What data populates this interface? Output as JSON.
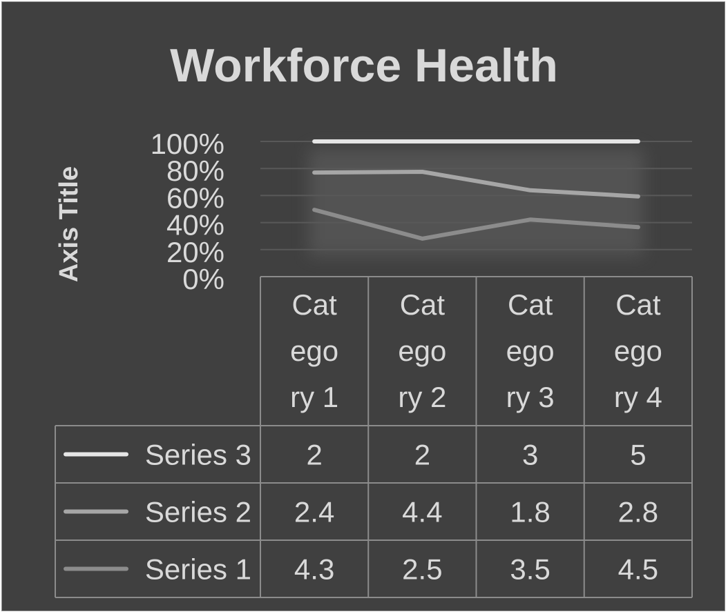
{
  "colors": {
    "background": "#404040",
    "text": "#d9d9d9",
    "grid": "#595959",
    "table_border": "#8c8c8c",
    "series_3": "#e6e6e6",
    "series_2": "#a6a6a6",
    "series_1": "#8c8c8c"
  },
  "chart_data": {
    "type": "line",
    "title": "Workforce Health",
    "ylabel": "Axis Title",
    "percent_stacked": true,
    "ylim": [
      0,
      1
    ],
    "y_ticks": [
      "0%",
      "20%",
      "40%",
      "60%",
      "80%",
      "100%"
    ],
    "grid": true,
    "legend": "data-table",
    "categories": [
      "Category 1",
      "Category 2",
      "Category 3",
      "Category 4"
    ],
    "category_label_lines": [
      [
        "Cat",
        "ego",
        "ry 1"
      ],
      [
        "Cat",
        "ego",
        "ry 2"
      ],
      [
        "Cat",
        "ego",
        "ry 3"
      ],
      [
        "Cat",
        "ego",
        "ry 4"
      ]
    ],
    "series": [
      {
        "name": "Series 3",
        "values": [
          2,
          2,
          3,
          5
        ],
        "value_labels": [
          "2",
          "2",
          "3",
          "5"
        ]
      },
      {
        "name": "Series 2",
        "values": [
          2.4,
          4.4,
          1.8,
          2.8
        ],
        "value_labels": [
          "2.4",
          "4.4",
          "1.8",
          "2.8"
        ]
      },
      {
        "name": "Series 1",
        "values": [
          4.3,
          2.5,
          3.5,
          4.5
        ],
        "value_labels": [
          "4.3",
          "2.5",
          "3.5",
          "4.5"
        ]
      }
    ]
  }
}
